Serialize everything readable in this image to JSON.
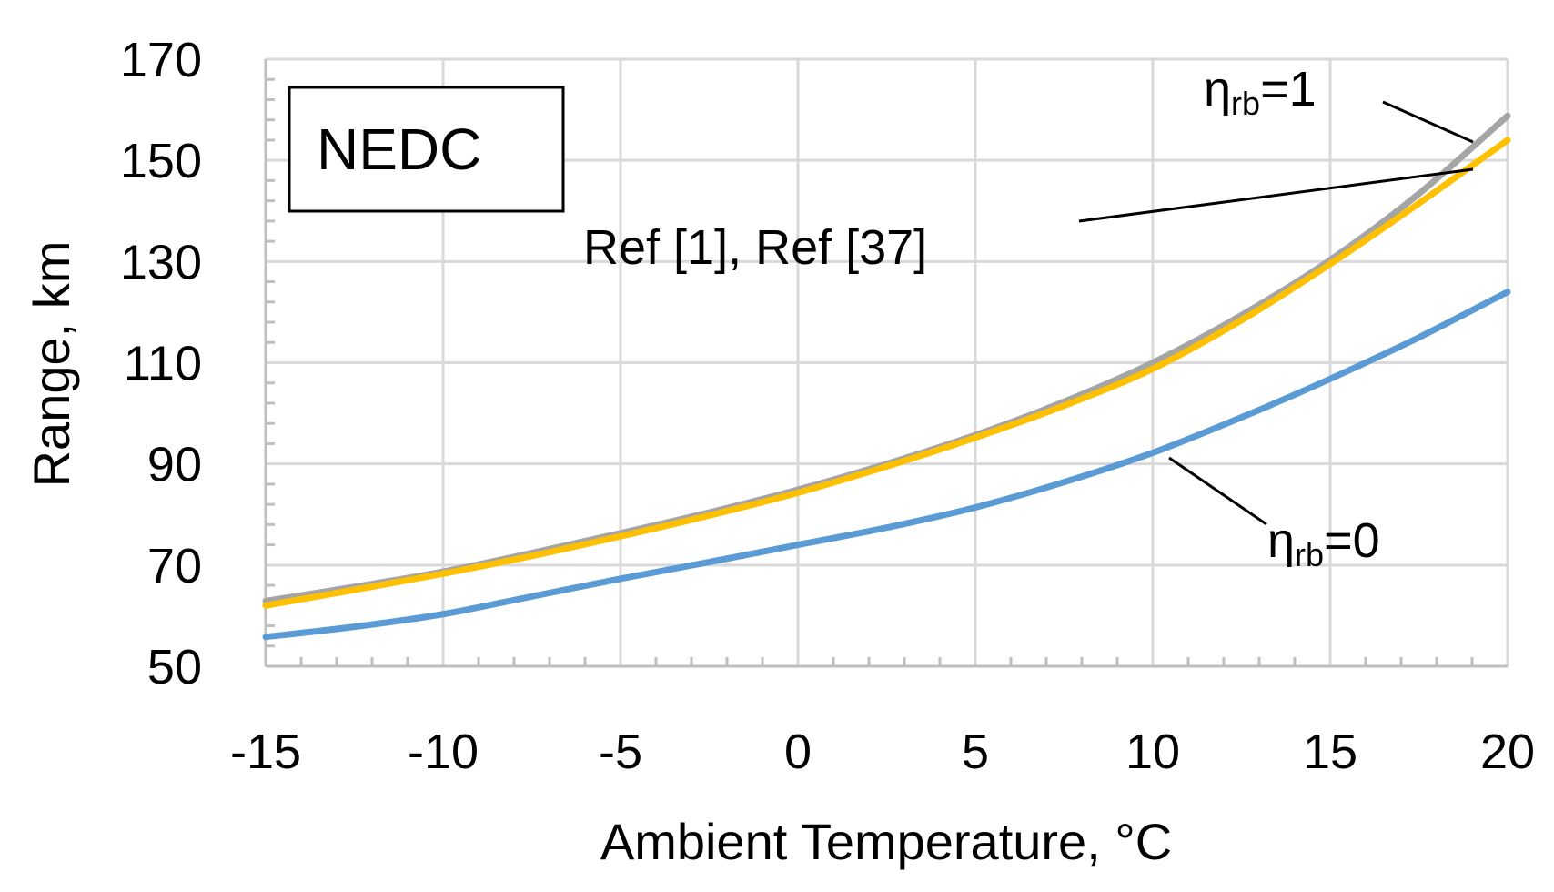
{
  "chart_data": {
    "type": "line",
    "xlabel": "Ambient Temperature, °C",
    "ylabel": "Range, km",
    "xlim": [
      -15,
      20
    ],
    "ylim": [
      50,
      170
    ],
    "xticks": [
      -15,
      -10,
      -5,
      0,
      5,
      10,
      15,
      20
    ],
    "yticks": [
      50,
      70,
      90,
      110,
      130,
      150,
      170
    ],
    "grid": true,
    "legend": "none",
    "inset_label": "NEDC",
    "x": [
      -15,
      -12.5,
      -10,
      -7.5,
      -5,
      -2.5,
      0,
      2.5,
      5,
      7.5,
      10,
      12.5,
      15,
      17.5,
      20
    ],
    "series": [
      {
        "name": "ηrb=1",
        "color": "#a5a5a5",
        "values": [
          62.9,
          65.7,
          68.7,
          72.4,
          76.3,
          80.4,
          84.9,
          90.0,
          95.7,
          102.3,
          110.0,
          119.4,
          130.3,
          143.4,
          158.8
        ]
      },
      {
        "name": "Ref [1], Ref [37]",
        "color": "#ffc000",
        "values": [
          62.0,
          65.1,
          68.3,
          71.8,
          75.7,
          79.8,
          84.3,
          89.5,
          95.2,
          101.5,
          108.8,
          118.4,
          129.5,
          141.5,
          154.0
        ]
      },
      {
        "name": "ηrb=0",
        "color": "#5b9bd5",
        "values": [
          55.8,
          57.8,
          60.3,
          63.8,
          67.3,
          70.6,
          74.0,
          77.4,
          81.4,
          86.4,
          92.2,
          99.2,
          106.8,
          115.0,
          124.0
        ]
      }
    ],
    "annotations": [
      {
        "text": "η",
        "sub": "rb",
        "suffix": "=1",
        "series": 0
      },
      {
        "text": "Ref [1], Ref [37]",
        "series": 1
      },
      {
        "text": "η",
        "sub": "rb",
        "suffix": "=0",
        "series": 2
      }
    ]
  }
}
